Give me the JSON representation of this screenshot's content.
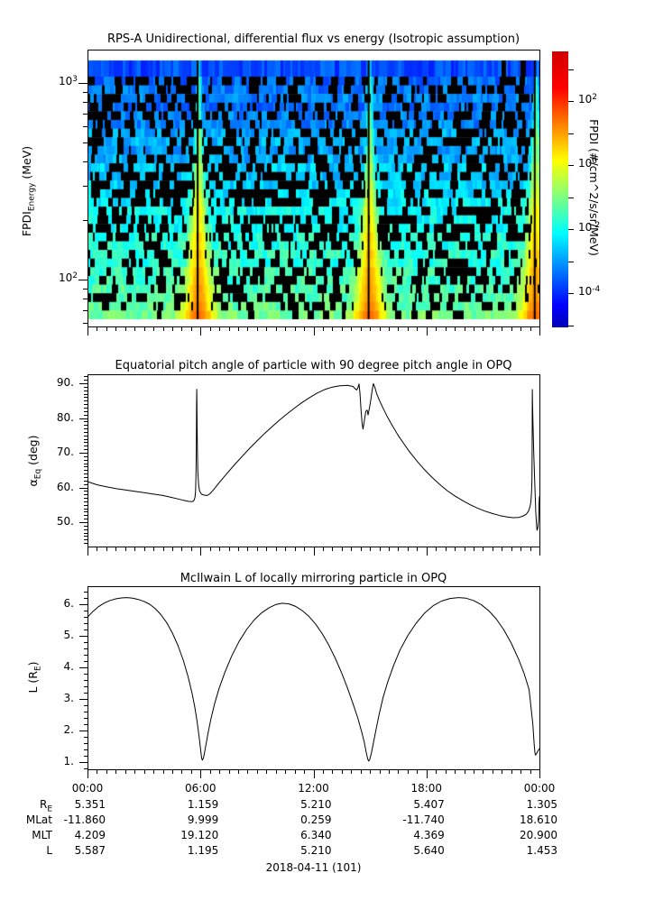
{
  "figure": {
    "date_label": "2018-04-11 (101)",
    "frame_color": "#000000",
    "background": "#ffffff"
  },
  "labels": {
    "flux_ylabel": {
      "main": "FPDI",
      "sub": "Energy",
      "rest": " (MeV)"
    },
    "pitch_ylabel": {
      "main": "α",
      "sub": "Eq",
      "rest": " (deg)"
    },
    "L_ylabel": {
      "pre": "L (R",
      "sub": "E",
      "post": ")"
    },
    "colorbar_label": "FPDI (#/cm^2/s/sr/MeV)"
  },
  "xaxis": {
    "tick_hours": [
      0,
      6,
      12,
      18,
      24
    ],
    "tick_labels": [
      "00:00",
      "06:00",
      "12:00",
      "18:00",
      "00:00"
    ]
  },
  "chart_data": [
    {
      "type": "heatmap",
      "title": "RPS-A Unidirectional, differential flux vs energy (Isotropic assumption)",
      "ylabel": "FPDI_Energy (MeV)",
      "y_scale": "log",
      "y_range_mev": [
        58,
        1480
      ],
      "x_range_hours": [
        0,
        24
      ],
      "yticks_labeled": [
        {
          "value": 1000,
          "exp": "3"
        },
        {
          "value": 100,
          "exp": "2"
        }
      ],
      "yticks_minor_mev": [
        60,
        70,
        80,
        90,
        200,
        300,
        400,
        500,
        600,
        700,
        800,
        900
      ],
      "colormap": "jet",
      "z_label": "FPDI (#/cm^2/s/sr/MeV)",
      "z_scale": "log",
      "colorbar_ticks_labeled": [
        {
          "exp": "2",
          "log10": 2
        },
        {
          "exp": "0",
          "log10": 0
        },
        {
          "exp": "-2",
          "log10": -2
        },
        {
          "exp": "-4",
          "log10": -4
        }
      ],
      "colorbar_ticks_minor_log10": [
        3,
        1,
        -1,
        -3,
        -5
      ],
      "perigee_funnel_hours": [
        5.85,
        14.93,
        23.75
      ],
      "description": "Noisy blue-to-cyan differential proton flux spectrogram with black data-gap columns; bright green/yellow/orange V-shaped flux funnels (widest at low energy) centered on each perigee pass, each with a narrow black center line; solid blue band at highest energies and continuous green-yellow band at lowest energies."
    },
    {
      "type": "line",
      "title": "Equatorial pitch angle of particle with 90 degree pitch angle in OPQ",
      "ylabel": "alpha_Eq (deg)",
      "ylim": [
        43,
        92.6
      ],
      "yticks": [
        {
          "value": 90,
          "label": "90."
        },
        {
          "value": 80,
          "label": "80."
        },
        {
          "value": 70,
          "label": "70."
        },
        {
          "value": 60,
          "label": "60."
        },
        {
          "value": 50,
          "label": "50."
        }
      ],
      "points": [
        [
          0,
          61.7
        ],
        [
          0.5,
          60.8
        ],
        [
          1,
          60.2
        ],
        [
          1.5,
          59.7
        ],
        [
          2,
          59.3
        ],
        [
          2.5,
          58.9
        ],
        [
          3,
          58.5
        ],
        [
          3.5,
          58.1
        ],
        [
          4,
          57.7
        ],
        [
          4.4,
          57.2
        ],
        [
          4.8,
          56.7
        ],
        [
          5.1,
          56.3
        ],
        [
          5.35,
          56.0
        ],
        [
          5.55,
          55.9
        ],
        [
          5.65,
          56.2
        ],
        [
          5.71,
          57.2
        ],
        [
          5.74,
          59
        ],
        [
          5.76,
          63
        ],
        [
          5.775,
          70
        ],
        [
          5.785,
          78
        ],
        [
          5.79,
          84
        ],
        [
          5.8,
          88.3
        ],
        [
          5.81,
          84
        ],
        [
          5.82,
          78
        ],
        [
          5.84,
          70
        ],
        [
          5.86,
          64.5
        ],
        [
          5.9,
          60.8
        ],
        [
          5.95,
          59
        ],
        [
          6.05,
          58.1
        ],
        [
          6.2,
          57.8
        ],
        [
          6.35,
          57.7
        ],
        [
          6.5,
          58.2
        ],
        [
          6.7,
          59.4
        ],
        [
          7,
          61.4
        ],
        [
          7.4,
          64
        ],
        [
          7.8,
          66.5
        ],
        [
          8.2,
          68.9
        ],
        [
          8.6,
          71.2
        ],
        [
          9,
          73.4
        ],
        [
          9.4,
          75.5
        ],
        [
          9.8,
          77.5
        ],
        [
          10.2,
          79.4
        ],
        [
          10.6,
          81.2
        ],
        [
          11,
          82.9
        ],
        [
          11.4,
          84.5
        ],
        [
          11.8,
          85.9
        ],
        [
          12.2,
          87.2
        ],
        [
          12.6,
          88.2
        ],
        [
          13,
          88.9
        ],
        [
          13.4,
          89.3
        ],
        [
          13.8,
          89.4
        ],
        [
          14.1,
          89.1
        ],
        [
          14.22,
          88.4
        ],
        [
          14.3,
          88.1
        ],
        [
          14.37,
          88.9
        ],
        [
          14.42,
          89.8
        ],
        [
          14.47,
          87
        ],
        [
          14.53,
          82
        ],
        [
          14.58,
          78.5
        ],
        [
          14.63,
          76.8
        ],
        [
          14.7,
          79.2
        ],
        [
          14.78,
          81.9
        ],
        [
          14.85,
          82.3
        ],
        [
          14.9,
          80.9
        ],
        [
          14.97,
          82.8
        ],
        [
          15.05,
          85.5
        ],
        [
          15.12,
          88
        ],
        [
          15.18,
          89.9
        ],
        [
          15.26,
          88.8
        ],
        [
          15.36,
          87
        ],
        [
          15.5,
          85.1
        ],
        [
          15.7,
          82.8
        ],
        [
          15.9,
          80.6
        ],
        [
          16.2,
          77.7
        ],
        [
          16.5,
          75
        ],
        [
          16.8,
          72.6
        ],
        [
          17.1,
          70.3
        ],
        [
          17.5,
          67.6
        ],
        [
          17.9,
          65.1
        ],
        [
          18.3,
          62.9
        ],
        [
          18.7,
          60.9
        ],
        [
          19.1,
          59.1
        ],
        [
          19.5,
          57.6
        ],
        [
          19.9,
          56.3
        ],
        [
          20.3,
          55.1
        ],
        [
          20.7,
          54.1
        ],
        [
          21.1,
          53.2
        ],
        [
          21.5,
          52.5
        ],
        [
          21.9,
          51.9
        ],
        [
          22.3,
          51.5
        ],
        [
          22.6,
          51.3
        ],
        [
          22.9,
          51.4
        ],
        [
          23.1,
          51.7
        ],
        [
          23.3,
          52.3
        ],
        [
          23.42,
          53.2
        ],
        [
          23.5,
          54.5
        ],
        [
          23.55,
          56
        ],
        [
          23.58,
          58.5
        ],
        [
          23.6,
          62
        ],
        [
          23.61,
          70
        ],
        [
          23.615,
          78
        ],
        [
          23.62,
          88.2
        ],
        [
          23.63,
          85
        ],
        [
          23.66,
          78
        ],
        [
          23.7,
          70
        ],
        [
          23.74,
          63
        ],
        [
          23.78,
          57
        ],
        [
          23.81,
          52.5
        ],
        [
          23.84,
          49.5
        ],
        [
          23.87,
          47.7
        ],
        [
          23.9,
          48
        ],
        [
          23.93,
          49
        ],
        [
          23.95,
          50.5
        ],
        [
          23.96,
          52
        ],
        [
          23.975,
          55
        ],
        [
          24,
          57.5
        ]
      ]
    },
    {
      "type": "line",
      "title": "McIlwain L of locally mirroring particle in OPQ",
      "ylabel": "L (R_E)",
      "ylim": [
        0.77,
        6.57
      ],
      "yticks": [
        {
          "value": 6,
          "label": "6."
        },
        {
          "value": 5,
          "label": "5."
        },
        {
          "value": 4,
          "label": "4."
        },
        {
          "value": 3,
          "label": "3."
        },
        {
          "value": 2,
          "label": "2."
        },
        {
          "value": 1,
          "label": "1."
        }
      ],
      "points": [
        [
          0,
          5.59
        ],
        [
          0.3,
          5.78
        ],
        [
          0.6,
          5.93
        ],
        [
          0.9,
          6.04
        ],
        [
          1.2,
          6.12
        ],
        [
          1.5,
          6.17
        ],
        [
          1.8,
          6.2
        ],
        [
          2.1,
          6.21
        ],
        [
          2.4,
          6.19
        ],
        [
          2.7,
          6.15
        ],
        [
          3,
          6.09
        ],
        [
          3.3,
          6.0
        ],
        [
          3.6,
          5.86
        ],
        [
          3.9,
          5.67
        ],
        [
          4.2,
          5.42
        ],
        [
          4.5,
          5.1
        ],
        [
          4.8,
          4.7
        ],
        [
          5.1,
          4.2
        ],
        [
          5.35,
          3.68
        ],
        [
          5.55,
          3.18
        ],
        [
          5.7,
          2.73
        ],
        [
          5.82,
          2.28
        ],
        [
          5.92,
          1.83
        ],
        [
          6.0,
          1.42
        ],
        [
          6.06,
          1.13
        ],
        [
          6.1,
          1.06
        ],
        [
          6.16,
          1.13
        ],
        [
          6.25,
          1.42
        ],
        [
          6.38,
          1.85
        ],
        [
          6.55,
          2.35
        ],
        [
          6.75,
          2.85
        ],
        [
          7,
          3.35
        ],
        [
          7.3,
          3.85
        ],
        [
          7.65,
          4.35
        ],
        [
          8.05,
          4.82
        ],
        [
          8.45,
          5.2
        ],
        [
          8.85,
          5.5
        ],
        [
          9.25,
          5.73
        ],
        [
          9.65,
          5.89
        ],
        [
          10,
          5.99
        ],
        [
          10.35,
          6.03
        ],
        [
          10.7,
          6.01
        ],
        [
          11.05,
          5.93
        ],
        [
          11.4,
          5.8
        ],
        [
          11.75,
          5.62
        ],
        [
          12.1,
          5.38
        ],
        [
          12.45,
          5.08
        ],
        [
          12.8,
          4.72
        ],
        [
          13.15,
          4.3
        ],
        [
          13.5,
          3.82
        ],
        [
          13.8,
          3.35
        ],
        [
          14.1,
          2.85
        ],
        [
          14.35,
          2.4
        ],
        [
          14.55,
          1.98
        ],
        [
          14.7,
          1.62
        ],
        [
          14.8,
          1.32
        ],
        [
          14.88,
          1.1
        ],
        [
          14.93,
          1.03
        ],
        [
          14.99,
          1.08
        ],
        [
          15.07,
          1.27
        ],
        [
          15.18,
          1.6
        ],
        [
          15.33,
          2.05
        ],
        [
          15.5,
          2.55
        ],
        [
          15.7,
          3.05
        ],
        [
          15.95,
          3.55
        ],
        [
          16.25,
          4.05
        ],
        [
          16.6,
          4.55
        ],
        [
          17,
          5.0
        ],
        [
          17.45,
          5.4
        ],
        [
          17.9,
          5.72
        ],
        [
          18.35,
          5.95
        ],
        [
          18.8,
          6.1
        ],
        [
          19.25,
          6.18
        ],
        [
          19.7,
          6.21
        ],
        [
          20.1,
          6.19
        ],
        [
          20.5,
          6.12
        ],
        [
          20.9,
          5.99
        ],
        [
          21.3,
          5.8
        ],
        [
          21.7,
          5.54
        ],
        [
          22.1,
          5.2
        ],
        [
          22.5,
          4.77
        ],
        [
          22.9,
          4.25
        ],
        [
          23.2,
          3.78
        ],
        [
          23.45,
          3.3
        ],
        [
          23.55,
          2.75
        ],
        [
          23.65,
          2.2
        ],
        [
          23.72,
          1.55
        ],
        [
          23.76,
          1.3
        ],
        [
          23.79,
          1.22
        ],
        [
          23.83,
          1.25
        ],
        [
          23.9,
          1.33
        ],
        [
          24,
          1.43
        ]
      ]
    }
  ],
  "table": {
    "times": [
      "00:00",
      "06:00",
      "12:00",
      "18:00",
      "00:00"
    ],
    "rows": [
      {
        "label": "R",
        "label_sub": "E",
        "values": [
          "5.351",
          "1.159",
          "5.210",
          "5.407",
          "1.305"
        ]
      },
      {
        "label": "MLat",
        "label_sub": "",
        "values": [
          "-11.860",
          "9.999",
          "0.259",
          "-11.740",
          "18.610"
        ]
      },
      {
        "label": "MLT",
        "label_sub": "",
        "values": [
          "4.209",
          "19.120",
          "6.340",
          "4.369",
          "20.900"
        ]
      },
      {
        "label": "L",
        "label_sub": "",
        "values": [
          "5.587",
          "1.195",
          "5.210",
          "5.640",
          "1.453"
        ]
      }
    ]
  }
}
